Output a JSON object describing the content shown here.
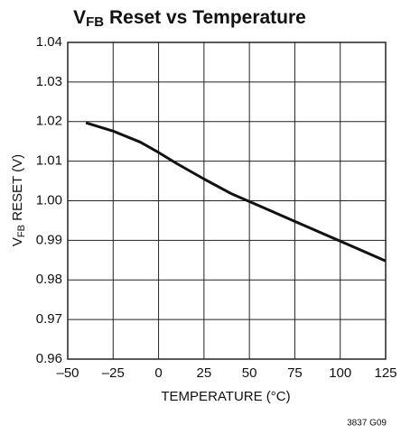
{
  "chart_data": {
    "type": "line",
    "title": [
      "V",
      "FB",
      " Reset vs Temperature"
    ],
    "xlabel": "TEMPERATURE (°C)",
    "ylabel": [
      "V",
      "FB",
      " RESET (V)"
    ],
    "note": "3837 G09",
    "x": [
      -40,
      -25,
      -10,
      0,
      10,
      25,
      40,
      50,
      60,
      75,
      90,
      100,
      110,
      125
    ],
    "series": [
      {
        "name": "VFB RESET",
        "color": "#111111",
        "values": [
          1.0197,
          1.0176,
          1.0148,
          1.0122,
          1.0094,
          1.0055,
          1.0018,
          0.9998,
          0.9978,
          0.9948,
          0.9918,
          0.9898,
          0.9878,
          0.9848
        ]
      }
    ],
    "xlim": [
      -50,
      125
    ],
    "xticks": [
      {
        "value": -50,
        "label": "–50"
      },
      {
        "value": -25,
        "label": "–25"
      },
      0,
      25,
      50,
      75,
      100,
      125
    ],
    "ylim": [
      0.96,
      1.04
    ],
    "yticks": [
      0.96,
      0.97,
      0.98,
      0.99,
      {
        "value": 1,
        "label": "1.00"
      },
      1.01,
      1.02,
      1.03,
      1.04
    ],
    "grid": true
  }
}
